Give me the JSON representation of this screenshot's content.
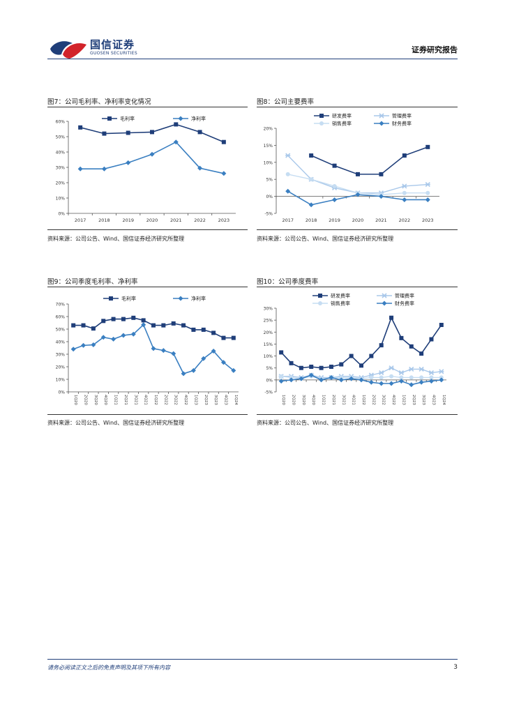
{
  "header": {
    "brand_cn": "国信证券",
    "brand_en": "GUOSEN SECURITIES",
    "report_type": "证券研究报告"
  },
  "figures": [
    {
      "title": "图7：公司毛利率、净利率变化情况",
      "source": "资料来源：公司公告、Wind、国信证券经济研究所整理"
    },
    {
      "title": "图8：公司主要费率",
      "source": "资料来源：公司公告、Wind、国信证券经济研究所整理"
    },
    {
      "title": "图9：公司季度毛利率、净利率",
      "source": "资料来源：公司公告、Wind、国信证券经济研究所整理"
    },
    {
      "title": "图10：公司季度费率",
      "source": "资料来源：公司公告、Wind、国信证券经济研究所整理"
    }
  ],
  "footer": {
    "disclaimer": "请务必阅读正文之后的免责声明及其项下所有内容",
    "page_number": "3"
  },
  "colors": {
    "navy": "#1f3e79",
    "mid_blue": "#3a7fc1",
    "light_blue": "#a9c8ea",
    "pale_blue": "#c6ddf2"
  },
  "chart_data": [
    {
      "type": "line",
      "categories": [
        "2017",
        "2018",
        "2019",
        "2020",
        "2021",
        "2022",
        "2023"
      ],
      "series": [
        {
          "name": "毛利率",
          "values": [
            56,
            52,
            52.5,
            53,
            58,
            53,
            46.5
          ],
          "marker": "square",
          "color": "#1f3e79"
        },
        {
          "name": "净利率",
          "values": [
            29,
            29,
            33,
            38.5,
            46.5,
            29.5,
            26
          ],
          "marker": "diamond",
          "color": "#3a7fc1"
        }
      ],
      "yticks": [
        "0%",
        "10%",
        "20%",
        "30%",
        "40%",
        "50%",
        "60%"
      ],
      "ylim": [
        0,
        60
      ],
      "legend": "top"
    },
    {
      "type": "line",
      "categories": [
        "2017",
        "2018",
        "2019",
        "2020",
        "2021",
        "2022",
        "2023"
      ],
      "series": [
        {
          "name": "研发费率",
          "values": [
            null,
            12,
            9,
            6.5,
            6.5,
            12,
            14.5
          ],
          "marker": "square",
          "color": "#1f3e79"
        },
        {
          "name": "管理费率",
          "values": [
            12,
            5,
            2.5,
            1,
            1,
            3,
            3.5
          ],
          "marker": "x",
          "color": "#a9c8ea"
        },
        {
          "name": "销售费率",
          "values": [
            6.5,
            5,
            3,
            1,
            0.5,
            1,
            1
          ],
          "marker": "circle",
          "color": "#c6ddf2"
        },
        {
          "name": "财务费率",
          "values": [
            1.5,
            -2.5,
            -1,
            0.5,
            0,
            -1,
            -1
          ],
          "marker": "diamond",
          "color": "#3a7fc1"
        }
      ],
      "yticks": [
        "-5%",
        "0%",
        "5%",
        "10%",
        "15%",
        "20%"
      ],
      "ylim": [
        -5,
        20
      ],
      "legend": "top"
    },
    {
      "type": "line",
      "categories": [
        "1Q20",
        "2Q20",
        "3Q20",
        "4Q20",
        "1Q21",
        "2Q21",
        "3Q21",
        "4Q21",
        "1Q22",
        "2Q22",
        "3Q22",
        "4Q22",
        "1Q23",
        "2Q23",
        "3Q23",
        "4Q23",
        "1Q24"
      ],
      "series": [
        {
          "name": "毛利率",
          "values": [
            53,
            53,
            50.5,
            56.5,
            58,
            58,
            59,
            57,
            53,
            53,
            54.5,
            53,
            49.5,
            49.5,
            47,
            43,
            43
          ],
          "marker": "square",
          "color": "#1f3e79"
        },
        {
          "name": "净利率",
          "values": [
            34,
            37,
            37.5,
            43.5,
            42,
            45,
            46,
            53.5,
            34.5,
            33,
            30.5,
            14.5,
            17,
            26.5,
            32.5,
            23.5,
            17
          ],
          "marker": "diamond",
          "color": "#3a7fc1"
        }
      ],
      "yticks": [
        "0%",
        "10%",
        "20%",
        "30%",
        "40%",
        "50%",
        "60%",
        "70%"
      ],
      "ylim": [
        0,
        70
      ],
      "legend": "top"
    },
    {
      "type": "line",
      "categories": [
        "1Q20",
        "2Q20",
        "3Q20",
        "4Q20",
        "1Q21",
        "2Q21",
        "3Q21",
        "4Q21",
        "1Q22",
        "2Q22",
        "3Q22",
        "4Q22",
        "1Q23",
        "2Q23",
        "3Q23",
        "4Q23",
        "1Q24"
      ],
      "series": [
        {
          "name": "研发费率",
          "values": [
            11.5,
            7,
            5,
            5.5,
            5,
            5.5,
            6.5,
            10,
            6,
            10,
            14.5,
            26,
            17.5,
            14,
            11,
            17,
            23
          ],
          "marker": "square",
          "color": "#1f3e79"
        },
        {
          "name": "管理费率",
          "values": [
            1.5,
            1.5,
            1,
            2,
            1,
            1,
            1.5,
            1.5,
            1,
            2,
            3,
            5,
            3,
            4.5,
            4.5,
            3,
            3.5
          ],
          "marker": "x",
          "color": "#a9c8ea"
        },
        {
          "name": "销售费率",
          "values": [
            1.5,
            1,
            0.5,
            1.5,
            0.5,
            1,
            1,
            1,
            0.5,
            1,
            1,
            1.5,
            1,
            1,
            1,
            1,
            1
          ],
          "marker": "circle",
          "color": "#c6ddf2"
        },
        {
          "name": "财务费率",
          "values": [
            -0.5,
            0,
            0.5,
            2,
            0,
            1,
            0,
            0.5,
            0,
            -1,
            -1.5,
            -1.5,
            -0.5,
            -2,
            -1,
            -0.5,
            0
          ],
          "marker": "diamond",
          "color": "#3a7fc1"
        }
      ],
      "yticks": [
        "-5%",
        "0%",
        "5%",
        "10%",
        "15%",
        "20%",
        "25%",
        "30%"
      ],
      "ylim": [
        -5,
        30
      ],
      "legend": "top"
    }
  ]
}
